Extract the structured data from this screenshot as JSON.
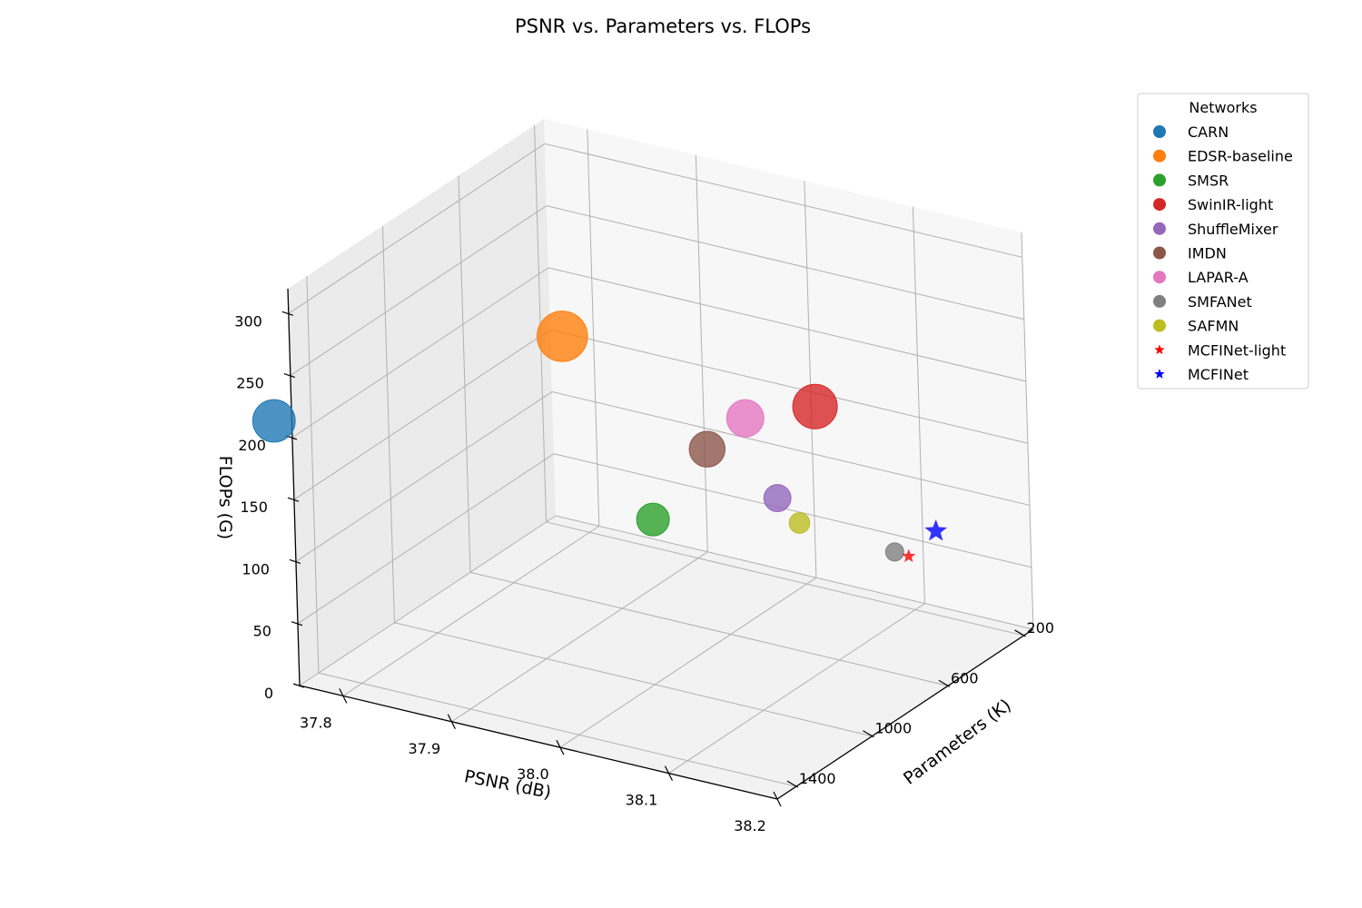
{
  "chart_data": {
    "type": "scatter",
    "title": "PSNR vs. Parameters vs. FLOPs",
    "xlabel": "PSNR (dB)",
    "ylabel": "Parameters (K)",
    "zlabel": "FLOPs (G)",
    "x_ticks": [
      "37.8",
      "37.9",
      "38.0",
      "38.1",
      "38.2"
    ],
    "y_ticks": [
      "200",
      "600",
      "1000",
      "1400"
    ],
    "z_ticks": [
      "0",
      "50",
      "100",
      "150",
      "200",
      "250",
      "300"
    ],
    "xlim": [
      37.76,
      38.2
    ],
    "ylim": [
      1500,
      150
    ],
    "zlim": [
      0,
      320
    ],
    "grid": true,
    "legend": {
      "title": "Networks",
      "placement": "right"
    },
    "series": [
      {
        "name": "CARN",
        "psnr": 37.76,
        "params": 1592,
        "flops": 222.8,
        "color": "#1f77b4",
        "marker": "circle"
      },
      {
        "name": "EDSR-baseline",
        "psnr": 37.99,
        "params": 1370,
        "flops": 316.3,
        "color": "#ff7f0e",
        "marker": "circle"
      },
      {
        "name": "SMSR",
        "psnr": 38.0,
        "params": 985,
        "flops": 131.6,
        "color": "#2ca02c",
        "marker": "circle"
      },
      {
        "name": "SwinIR-light",
        "psnr": 38.14,
        "params": 910,
        "flops": 244.2,
        "color": "#d62728",
        "marker": "circle"
      },
      {
        "name": "ShuffleMixer",
        "psnr": 38.01,
        "params": 394,
        "flops": 91.0,
        "color": "#9467bd",
        "marker": "circle"
      },
      {
        "name": "IMDN",
        "psnr": 38.0,
        "params": 694,
        "flops": 158.8,
        "color": "#8c564b",
        "marker": "circle"
      },
      {
        "name": "LAPAR-A",
        "psnr": 38.01,
        "params": 548,
        "flops": 171.0,
        "color": "#e377c2",
        "marker": "circle"
      },
      {
        "name": "SMFANet",
        "psnr": 38.08,
        "params": 186,
        "flops": 41.0,
        "color": "#7f7f7f",
        "marker": "circle"
      },
      {
        "name": "SAFMN",
        "psnr": 38.0,
        "params": 228,
        "flops": 52.0,
        "color": "#bcbd22",
        "marker": "circle"
      },
      {
        "name": "MCFINet-light",
        "psnr": 38.09,
        "params": 170,
        "flops": 38.0,
        "color": "#ff0000",
        "marker": "star"
      },
      {
        "name": "MCFINet",
        "psnr": 38.15,
        "params": 360,
        "flops": 90.0,
        "color": "#0000ff",
        "marker": "star"
      }
    ]
  }
}
